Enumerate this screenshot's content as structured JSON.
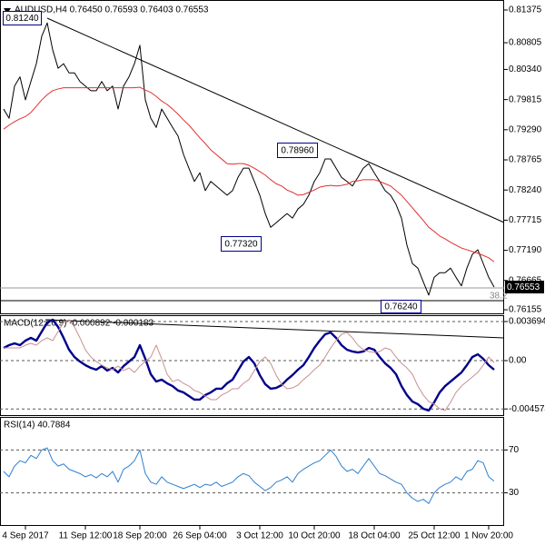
{
  "chart_data": [
    {
      "type": "line",
      "title": "AUDUSD,H4  0.76450 0.76593 0.76403 0.76553",
      "last_label": "0.76553",
      "annotations": [
        "0.81240",
        "0.78960",
        "0.77320",
        "0.76240",
        "38.2"
      ],
      "ylim": [
        0.76092,
        0.81549
      ],
      "yticks": [
        0.81375,
        0.80805,
        {
          "value": 0.8034,
          "label": "0.80340"
        },
        0.79815,
        {
          "value": 0.7929,
          "label": "0.79290"
        },
        0.78765,
        {
          "value": 0.7824,
          "label": "0.78240"
        },
        0.77715,
        {
          "value": 0.7719,
          "label": "0.77190"
        },
        0.76665,
        0.76155
      ],
      "grid": false,
      "series": [
        {
          "color": "#000000",
          "values": [
            0.7965,
            0.7949,
            0.8005,
            0.8021,
            0.7981,
            0.8013,
            0.8044,
            0.8092,
            0.8115,
            0.8068,
            0.8036,
            0.8044,
            0.8028,
            0.8028,
            0.8013,
            0.8005,
            0.7997,
            0.7997,
            0.8013,
            0.7997,
            0.8005,
            0.7965,
            0.8005,
            0.8021,
            0.8044,
            0.8076,
            0.7981,
            0.7949,
            0.7933,
            0.7965,
            0.7949,
            0.7933,
            0.7918,
            0.7886,
            0.7862,
            0.7839,
            0.7854,
            0.7823,
            0.7839,
            0.7831,
            0.7823,
            0.7815,
            0.7823,
            0.7846,
            0.7862,
            0.7862,
            0.7839,
            0.7815,
            0.7783,
            0.7759,
            0.7767,
            0.7775,
            0.7783,
            0.7775,
            0.7791,
            0.7799,
            0.7815,
            0.7839,
            0.7854,
            0.7878,
            0.7878,
            0.7862,
            0.7846,
            0.7839,
            0.7831,
            0.7846,
            0.7862,
            0.787,
            0.7854,
            0.7839,
            0.7823,
            0.7815,
            0.7799,
            0.7775,
            0.7728,
            0.7696,
            0.7688,
            0.7664,
            0.7641,
            0.7672,
            0.768,
            0.768,
            0.7688,
            0.7672,
            0.7657,
            0.7688,
            0.7712,
            0.772,
            0.7696,
            0.7672,
            0.7655
          ]
        },
        {
          "color": "#e03030",
          "values": [
            0.793,
            0.7937,
            0.7943,
            0.7948,
            0.7952,
            0.7959,
            0.797,
            0.7981,
            0.799,
            0.7997,
            0.8,
            0.8002,
            0.8002,
            0.8002,
            0.8002,
            0.8002,
            0.8002,
            0.8002,
            0.8002,
            0.8002,
            0.8002,
            0.8002,
            0.8002,
            0.8002,
            0.8002,
            0.8003,
            0.7998,
            0.7994,
            0.7987,
            0.7979,
            0.7973,
            0.7965,
            0.7956,
            0.7946,
            0.7937,
            0.7926,
            0.7915,
            0.7905,
            0.7894,
            0.7886,
            0.7878,
            0.787,
            0.7869,
            0.787,
            0.787,
            0.7867,
            0.7862,
            0.7856,
            0.785,
            0.7842,
            0.7835,
            0.7831,
            0.7824,
            0.782,
            0.7815,
            0.7816,
            0.782,
            0.7824,
            0.7829,
            0.7831,
            0.7832,
            0.7831,
            0.7832,
            0.7834,
            0.7839,
            0.784,
            0.7842,
            0.7842,
            0.7842,
            0.7839,
            0.7835,
            0.7831,
            0.7823,
            0.7815,
            0.7804,
            0.7793,
            0.7782,
            0.7771,
            0.7759,
            0.7752,
            0.7744,
            0.7739,
            0.7733,
            0.7728,
            0.7723,
            0.772,
            0.7717,
            0.7714,
            0.771,
            0.7706,
            0.7699
          ]
        }
      ]
    },
    {
      "type": "line",
      "title": "MACD(12,26,9) -0.000892 -0.000183",
      "ylim": [
        -0.005155,
        0.004295
      ],
      "yticks": [
        0.003694,
        {
          "value": 0,
          "label": "0.00"
        },
        -0.004574
      ],
      "grid": true,
      "series": [
        {
          "color": "#00008b",
          "values": [
            0.0012,
            0.00146,
            0.00163,
            0.00146,
            0.00189,
            0.00215,
            0.00189,
            0.00275,
            0.00361,
            0.00387,
            0.00318,
            0.00215,
            0.00103,
            0.00034,
            -9e-05,
            -0.00043,
            -0.00069,
            -0.00086,
            -0.00052,
            -0.00094,
            -0.00069,
            -0.00112,
            -0.00052,
            -9e-05,
            0.00034,
            0.00146,
            0.00017,
            -0.00129,
            -0.00198,
            -0.0018,
            -0.00215,
            -0.00241,
            -0.00283,
            -0.00301,
            -0.00335,
            -0.00369,
            -0.00369,
            -0.00326,
            -0.00301,
            -0.00266,
            -0.00266,
            -0.00215,
            -0.0018,
            -0.00094,
            -9e-05,
            0.00034,
            -0.00026,
            -0.00137,
            -0.00223,
            -0.00266,
            -0.00258,
            -0.00232,
            -0.0018,
            -0.00137,
            -0.00086,
            -0.00043,
            0.00034,
            0.0012,
            0.00189,
            0.00249,
            0.00266,
            0.00215,
            0.00146,
            0.00103,
            0.00086,
            0.00077,
            0.00086,
            0.0012,
            0.00103,
            0.00034,
            -0.00026,
            -0.00069,
            -0.00129,
            -0.00241,
            -0.00326,
            -0.00387,
            -0.00412,
            -0.00455,
            -0.00472,
            -0.00395,
            -0.00301,
            -0.00241,
            -0.00198,
            -0.00155,
            -0.00112,
            -0.00043,
            0.00034,
            0.0006,
            0.00017,
            -0.00043,
            -0.00086
          ]
        },
        {
          "color": "#c99090",
          "values": [
            0.0012,
            0.0012,
            0.0012,
            0.0012,
            0.00146,
            0.00163,
            0.00146,
            0.00189,
            0.00215,
            0.00189,
            0.00275,
            0.00361,
            0.00387,
            0.00318,
            0.00215,
            0.00103,
            0.00034,
            -9e-05,
            -0.00043,
            -0.00069,
            -0.00086,
            -0.00052,
            -0.00094,
            -0.00069,
            -0.00112,
            -0.00052,
            -9e-05,
            0.00034,
            0.00146,
            0.00017,
            -0.00129,
            -0.00198,
            -0.0018,
            -0.00215,
            -0.00241,
            -0.00283,
            -0.00301,
            -0.00335,
            -0.00369,
            -0.00369,
            -0.00326,
            -0.00301,
            -0.00266,
            -0.00266,
            -0.00215,
            -0.0018,
            -0.00094,
            -9e-05,
            0.00034,
            -0.00026,
            -0.00137,
            -0.00223,
            -0.00266,
            -0.00258,
            -0.00232,
            -0.0018,
            -0.00137,
            -0.00086,
            -0.00043,
            0.00034,
            0.0012,
            0.00189,
            0.00249,
            0.00266,
            0.00215,
            0.00146,
            0.00103,
            0.00086,
            0.00077,
            0.00086,
            0.0012,
            0.00103,
            0.00034,
            -0.00026,
            -0.00069,
            -0.00129,
            -0.00241,
            -0.00326,
            -0.00387,
            -0.00412,
            -0.00455,
            -0.00472,
            -0.00395,
            -0.00301,
            -0.00241,
            -0.00198,
            -0.00155,
            -0.00112,
            -0.00043,
            0.00034,
            -0.00018
          ]
        }
      ]
    },
    {
      "type": "line",
      "title": "RSI(14) 40.7884",
      "ylim": [
        0,
        100
      ],
      "yticks": [
        70,
        30
      ],
      "grid": true,
      "categories": [
        null,
        null,
        null,
        null,
        "4 Sep 2017",
        null,
        null,
        null,
        null,
        null,
        null,
        null,
        null,
        null,
        null,
        "11 Sep 12:00",
        null,
        null,
        null,
        null,
        null,
        null,
        null,
        null,
        null,
        "18 Sep 20:00",
        null,
        null,
        null,
        null,
        null,
        null,
        null,
        null,
        null,
        null,
        "26 Sep 04:00",
        null,
        null,
        null,
        null,
        null,
        null,
        null,
        null,
        null,
        null,
        "3 Oct 12:00",
        null,
        null,
        null,
        null,
        null,
        null,
        null,
        null,
        null,
        "10 Oct 20:00",
        null,
        null,
        null,
        null,
        null,
        null,
        null,
        null,
        null,
        null,
        "18 Oct 04:00",
        null,
        null,
        null,
        null,
        null,
        null,
        null,
        null,
        null,
        null,
        "25 Oct 12:00",
        null,
        null,
        null,
        null,
        null,
        null,
        null,
        null,
        null,
        "1 Nov 20:00",
        null
      ],
      "series": [
        {
          "color": "#2f7fd0",
          "values": [
            50,
            45,
            55,
            60,
            58,
            65,
            62,
            70,
            72,
            60,
            55,
            57,
            52,
            50,
            48,
            45,
            47,
            44,
            48,
            45,
            50,
            40,
            52,
            55,
            60,
            70,
            48,
            40,
            38,
            45,
            40,
            38,
            36,
            34,
            36,
            38,
            35,
            38,
            37,
            40,
            36,
            38,
            40,
            45,
            48,
            46,
            40,
            36,
            32,
            35,
            40,
            42,
            45,
            40,
            48,
            52,
            55,
            58,
            60,
            65,
            70,
            64,
            55,
            50,
            52,
            48,
            55,
            62,
            55,
            48,
            46,
            43,
            40,
            38,
            30,
            25,
            22,
            24,
            20,
            30,
            35,
            38,
            40,
            45,
            42,
            50,
            52,
            60,
            58,
            45,
            41
          ]
        }
      ]
    }
  ]
}
